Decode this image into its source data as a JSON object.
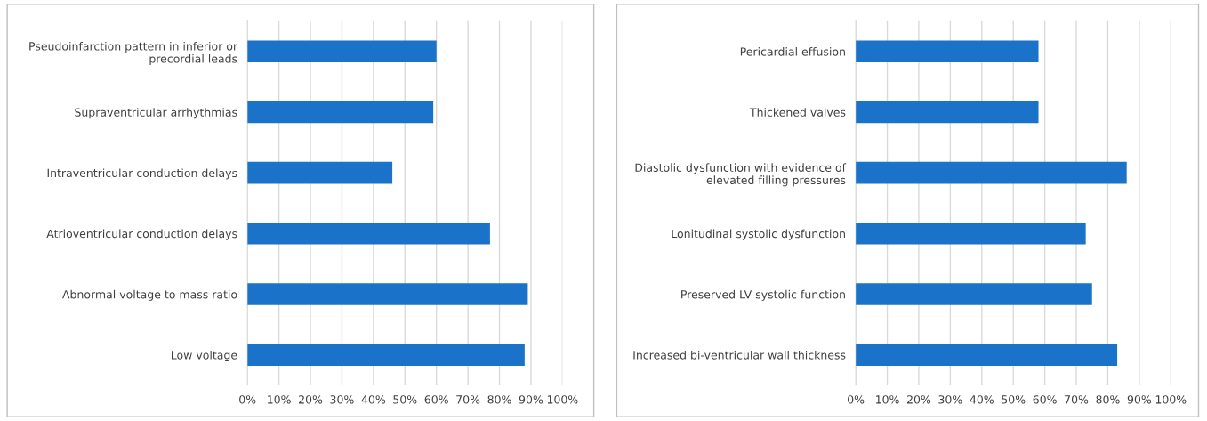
{
  "chart_data": [
    {
      "type": "bar",
      "orientation": "horizontal",
      "categories": [
        "Pseudoinfarction pattern in inferior or\nprecordial leads",
        "Supraventricular arrhythmias",
        "Intraventricular conduction delays",
        "Atrioventricular conduction delays",
        "Abnormal voltage to mass ratio",
        "Low voltage"
      ],
      "series": [
        {
          "color": "#1a73c8",
          "values": [
            60,
            59,
            46,
            77,
            89,
            88
          ]
        }
      ],
      "xlim": [
        0,
        100
      ],
      "xticks": [
        {
          "value": 0,
          "label": "0%"
        },
        {
          "value": 10,
          "label": "10%"
        },
        {
          "value": 20,
          "label": "20%"
        },
        {
          "value": 30,
          "label": "30%"
        },
        {
          "value": 40,
          "label": "40%"
        },
        {
          "value": 50,
          "label": "50%"
        },
        {
          "value": 60,
          "label": "60%"
        },
        {
          "value": 70,
          "label": "70%"
        },
        {
          "value": 80,
          "label": "80%"
        },
        {
          "value": 90,
          "label": "90%"
        },
        {
          "value": 100,
          "label": "100%"
        }
      ],
      "grid": "x"
    },
    {
      "type": "bar",
      "orientation": "horizontal",
      "categories": [
        "Pericardial effusion",
        "Thickened valves",
        "Diastolic dysfunction with evidence of\nelevated filling pressures",
        "Lonitudinal systolic dysfunction",
        "Preserved LV systolic function",
        "Increased bi-ventricular wall thickness"
      ],
      "series": [
        {
          "color": "#1a73c8",
          "values": [
            58,
            58,
            86,
            73,
            75,
            83
          ]
        }
      ],
      "xlim": [
        0,
        100
      ],
      "xticks": [
        {
          "value": 0,
          "label": "0%"
        },
        {
          "value": 10,
          "label": "10%"
        },
        {
          "value": 20,
          "label": "20%"
        },
        {
          "value": 30,
          "label": "30%"
        },
        {
          "value": 40,
          "label": "40%"
        },
        {
          "value": 50,
          "label": "50%"
        },
        {
          "value": 60,
          "label": "60%"
        },
        {
          "value": 70,
          "label": "70%"
        },
        {
          "value": 80,
          "label": "80%"
        },
        {
          "value": 90,
          "label": "90%"
        },
        {
          "value": 100,
          "label": "100%"
        }
      ],
      "grid": "x"
    }
  ]
}
